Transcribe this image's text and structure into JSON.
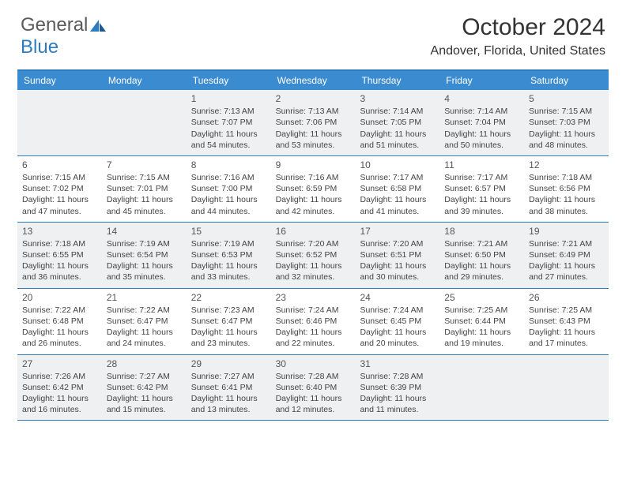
{
  "logo": {
    "text_general": "General",
    "text_blue": "Blue",
    "icon_color": "#2e7cc0"
  },
  "title": "October 2024",
  "location": "Andover, Florida, United States",
  "colors": {
    "header_bar": "#3b8bd0",
    "header_text": "#ffffff",
    "border": "#2e7cc0",
    "shaded_cell": "#eef0f1",
    "body_text": "#444444",
    "daynum_text": "#555555"
  },
  "day_headers": [
    "Sunday",
    "Monday",
    "Tuesday",
    "Wednesday",
    "Thursday",
    "Friday",
    "Saturday"
  ],
  "weeks": [
    [
      {
        "n": "",
        "sr": "",
        "ss": "",
        "dl": ""
      },
      {
        "n": "",
        "sr": "",
        "ss": "",
        "dl": ""
      },
      {
        "n": "1",
        "sr": "Sunrise: 7:13 AM",
        "ss": "Sunset: 7:07 PM",
        "dl": "Daylight: 11 hours and 54 minutes."
      },
      {
        "n": "2",
        "sr": "Sunrise: 7:13 AM",
        "ss": "Sunset: 7:06 PM",
        "dl": "Daylight: 11 hours and 53 minutes."
      },
      {
        "n": "3",
        "sr": "Sunrise: 7:14 AM",
        "ss": "Sunset: 7:05 PM",
        "dl": "Daylight: 11 hours and 51 minutes."
      },
      {
        "n": "4",
        "sr": "Sunrise: 7:14 AM",
        "ss": "Sunset: 7:04 PM",
        "dl": "Daylight: 11 hours and 50 minutes."
      },
      {
        "n": "5",
        "sr": "Sunrise: 7:15 AM",
        "ss": "Sunset: 7:03 PM",
        "dl": "Daylight: 11 hours and 48 minutes."
      }
    ],
    [
      {
        "n": "6",
        "sr": "Sunrise: 7:15 AM",
        "ss": "Sunset: 7:02 PM",
        "dl": "Daylight: 11 hours and 47 minutes."
      },
      {
        "n": "7",
        "sr": "Sunrise: 7:15 AM",
        "ss": "Sunset: 7:01 PM",
        "dl": "Daylight: 11 hours and 45 minutes."
      },
      {
        "n": "8",
        "sr": "Sunrise: 7:16 AM",
        "ss": "Sunset: 7:00 PM",
        "dl": "Daylight: 11 hours and 44 minutes."
      },
      {
        "n": "9",
        "sr": "Sunrise: 7:16 AM",
        "ss": "Sunset: 6:59 PM",
        "dl": "Daylight: 11 hours and 42 minutes."
      },
      {
        "n": "10",
        "sr": "Sunrise: 7:17 AM",
        "ss": "Sunset: 6:58 PM",
        "dl": "Daylight: 11 hours and 41 minutes."
      },
      {
        "n": "11",
        "sr": "Sunrise: 7:17 AM",
        "ss": "Sunset: 6:57 PM",
        "dl": "Daylight: 11 hours and 39 minutes."
      },
      {
        "n": "12",
        "sr": "Sunrise: 7:18 AM",
        "ss": "Sunset: 6:56 PM",
        "dl": "Daylight: 11 hours and 38 minutes."
      }
    ],
    [
      {
        "n": "13",
        "sr": "Sunrise: 7:18 AM",
        "ss": "Sunset: 6:55 PM",
        "dl": "Daylight: 11 hours and 36 minutes."
      },
      {
        "n": "14",
        "sr": "Sunrise: 7:19 AM",
        "ss": "Sunset: 6:54 PM",
        "dl": "Daylight: 11 hours and 35 minutes."
      },
      {
        "n": "15",
        "sr": "Sunrise: 7:19 AM",
        "ss": "Sunset: 6:53 PM",
        "dl": "Daylight: 11 hours and 33 minutes."
      },
      {
        "n": "16",
        "sr": "Sunrise: 7:20 AM",
        "ss": "Sunset: 6:52 PM",
        "dl": "Daylight: 11 hours and 32 minutes."
      },
      {
        "n": "17",
        "sr": "Sunrise: 7:20 AM",
        "ss": "Sunset: 6:51 PM",
        "dl": "Daylight: 11 hours and 30 minutes."
      },
      {
        "n": "18",
        "sr": "Sunrise: 7:21 AM",
        "ss": "Sunset: 6:50 PM",
        "dl": "Daylight: 11 hours and 29 minutes."
      },
      {
        "n": "19",
        "sr": "Sunrise: 7:21 AM",
        "ss": "Sunset: 6:49 PM",
        "dl": "Daylight: 11 hours and 27 minutes."
      }
    ],
    [
      {
        "n": "20",
        "sr": "Sunrise: 7:22 AM",
        "ss": "Sunset: 6:48 PM",
        "dl": "Daylight: 11 hours and 26 minutes."
      },
      {
        "n": "21",
        "sr": "Sunrise: 7:22 AM",
        "ss": "Sunset: 6:47 PM",
        "dl": "Daylight: 11 hours and 24 minutes."
      },
      {
        "n": "22",
        "sr": "Sunrise: 7:23 AM",
        "ss": "Sunset: 6:47 PM",
        "dl": "Daylight: 11 hours and 23 minutes."
      },
      {
        "n": "23",
        "sr": "Sunrise: 7:24 AM",
        "ss": "Sunset: 6:46 PM",
        "dl": "Daylight: 11 hours and 22 minutes."
      },
      {
        "n": "24",
        "sr": "Sunrise: 7:24 AM",
        "ss": "Sunset: 6:45 PM",
        "dl": "Daylight: 11 hours and 20 minutes."
      },
      {
        "n": "25",
        "sr": "Sunrise: 7:25 AM",
        "ss": "Sunset: 6:44 PM",
        "dl": "Daylight: 11 hours and 19 minutes."
      },
      {
        "n": "26",
        "sr": "Sunrise: 7:25 AM",
        "ss": "Sunset: 6:43 PM",
        "dl": "Daylight: 11 hours and 17 minutes."
      }
    ],
    [
      {
        "n": "27",
        "sr": "Sunrise: 7:26 AM",
        "ss": "Sunset: 6:42 PM",
        "dl": "Daylight: 11 hours and 16 minutes."
      },
      {
        "n": "28",
        "sr": "Sunrise: 7:27 AM",
        "ss": "Sunset: 6:42 PM",
        "dl": "Daylight: 11 hours and 15 minutes."
      },
      {
        "n": "29",
        "sr": "Sunrise: 7:27 AM",
        "ss": "Sunset: 6:41 PM",
        "dl": "Daylight: 11 hours and 13 minutes."
      },
      {
        "n": "30",
        "sr": "Sunrise: 7:28 AM",
        "ss": "Sunset: 6:40 PM",
        "dl": "Daylight: 11 hours and 12 minutes."
      },
      {
        "n": "31",
        "sr": "Sunrise: 7:28 AM",
        "ss": "Sunset: 6:39 PM",
        "dl": "Daylight: 11 hours and 11 minutes."
      },
      {
        "n": "",
        "sr": "",
        "ss": "",
        "dl": ""
      },
      {
        "n": "",
        "sr": "",
        "ss": "",
        "dl": ""
      }
    ]
  ]
}
